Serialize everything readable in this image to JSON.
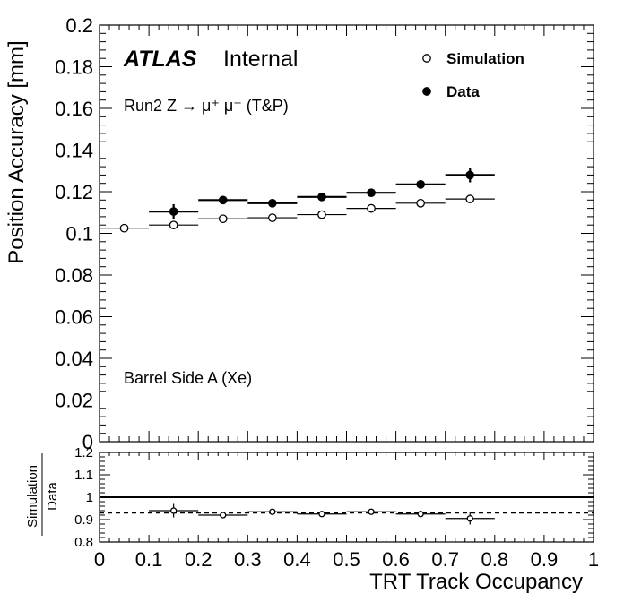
{
  "chart_data": {
    "type": "scatter",
    "title": "",
    "xlabel": "TRT Track Occupancy",
    "ylabel": "Position Accuracy [mm]",
    "xlim": [
      0,
      1
    ],
    "ylim": [
      0,
      0.2
    ],
    "ratio_ylim": [
      0.8,
      1.2
    ],
    "x_ticks": [
      "0",
      "0.1",
      "0.2",
      "0.3",
      "0.4",
      "0.5",
      "0.6",
      "0.7",
      "0.8",
      "0.9",
      "1"
    ],
    "y_ticks": [
      "0",
      "0.02",
      "0.04",
      "0.06",
      "0.08",
      "0.1",
      "0.12",
      "0.14",
      "0.16",
      "0.18",
      "0.2"
    ],
    "ratio_ticks": [
      "0.8",
      "0.9",
      "1",
      "1.1",
      "1.2"
    ],
    "ratio_ylabel_num": "Simulation",
    "ratio_ylabel_den": "Data",
    "labels": {
      "atlas": "ATLAS",
      "internal": "Internal",
      "process": "Run2 Z → μ⁺ μ⁻ (T&P)",
      "region": "Barrel Side A (Xe)"
    },
    "legend": {
      "position": "top-right",
      "entries": [
        {
          "name": "Simulation",
          "marker": "open-circle"
        },
        {
          "name": "Data",
          "marker": "filled-circle"
        }
      ]
    },
    "series": [
      {
        "name": "Simulation",
        "marker": "open-circle",
        "x": [
          0.05,
          0.15,
          0.25,
          0.35,
          0.45,
          0.55,
          0.65,
          0.75
        ],
        "y": [
          0.1025,
          0.104,
          0.107,
          0.1075,
          0.109,
          0.112,
          0.1145,
          0.1165
        ],
        "yerr": [
          0.0003,
          0.0003,
          0.0003,
          0.0003,
          0.0004,
          0.0004,
          0.0005,
          0.0015
        ],
        "bin_width": 0.1
      },
      {
        "name": "Data",
        "marker": "filled-circle",
        "x": [
          0.15,
          0.25,
          0.35,
          0.45,
          0.55,
          0.65,
          0.75
        ],
        "y": [
          0.1105,
          0.116,
          0.1145,
          0.1175,
          0.1195,
          0.1235,
          0.128
        ],
        "yerr": [
          0.0035,
          0.001,
          0.0008,
          0.0008,
          0.001,
          0.001,
          0.0035
        ],
        "bin_width": 0.1
      },
      {
        "name": "Ratio",
        "marker": "open-circle",
        "x": [
          0.15,
          0.25,
          0.35,
          0.45,
          0.55,
          0.65,
          0.75
        ],
        "y": [
          0.94,
          0.92,
          0.935,
          0.925,
          0.935,
          0.925,
          0.905
        ],
        "yerr": [
          0.03,
          0.008,
          0.006,
          0.006,
          0.007,
          0.007,
          0.027
        ],
        "bin_width": 0.1
      }
    ],
    "ratio_reference_lines": [
      {
        "y": 1.0,
        "style": "solid"
      },
      {
        "y": 0.93,
        "style": "dashed"
      }
    ],
    "grid": false
  }
}
